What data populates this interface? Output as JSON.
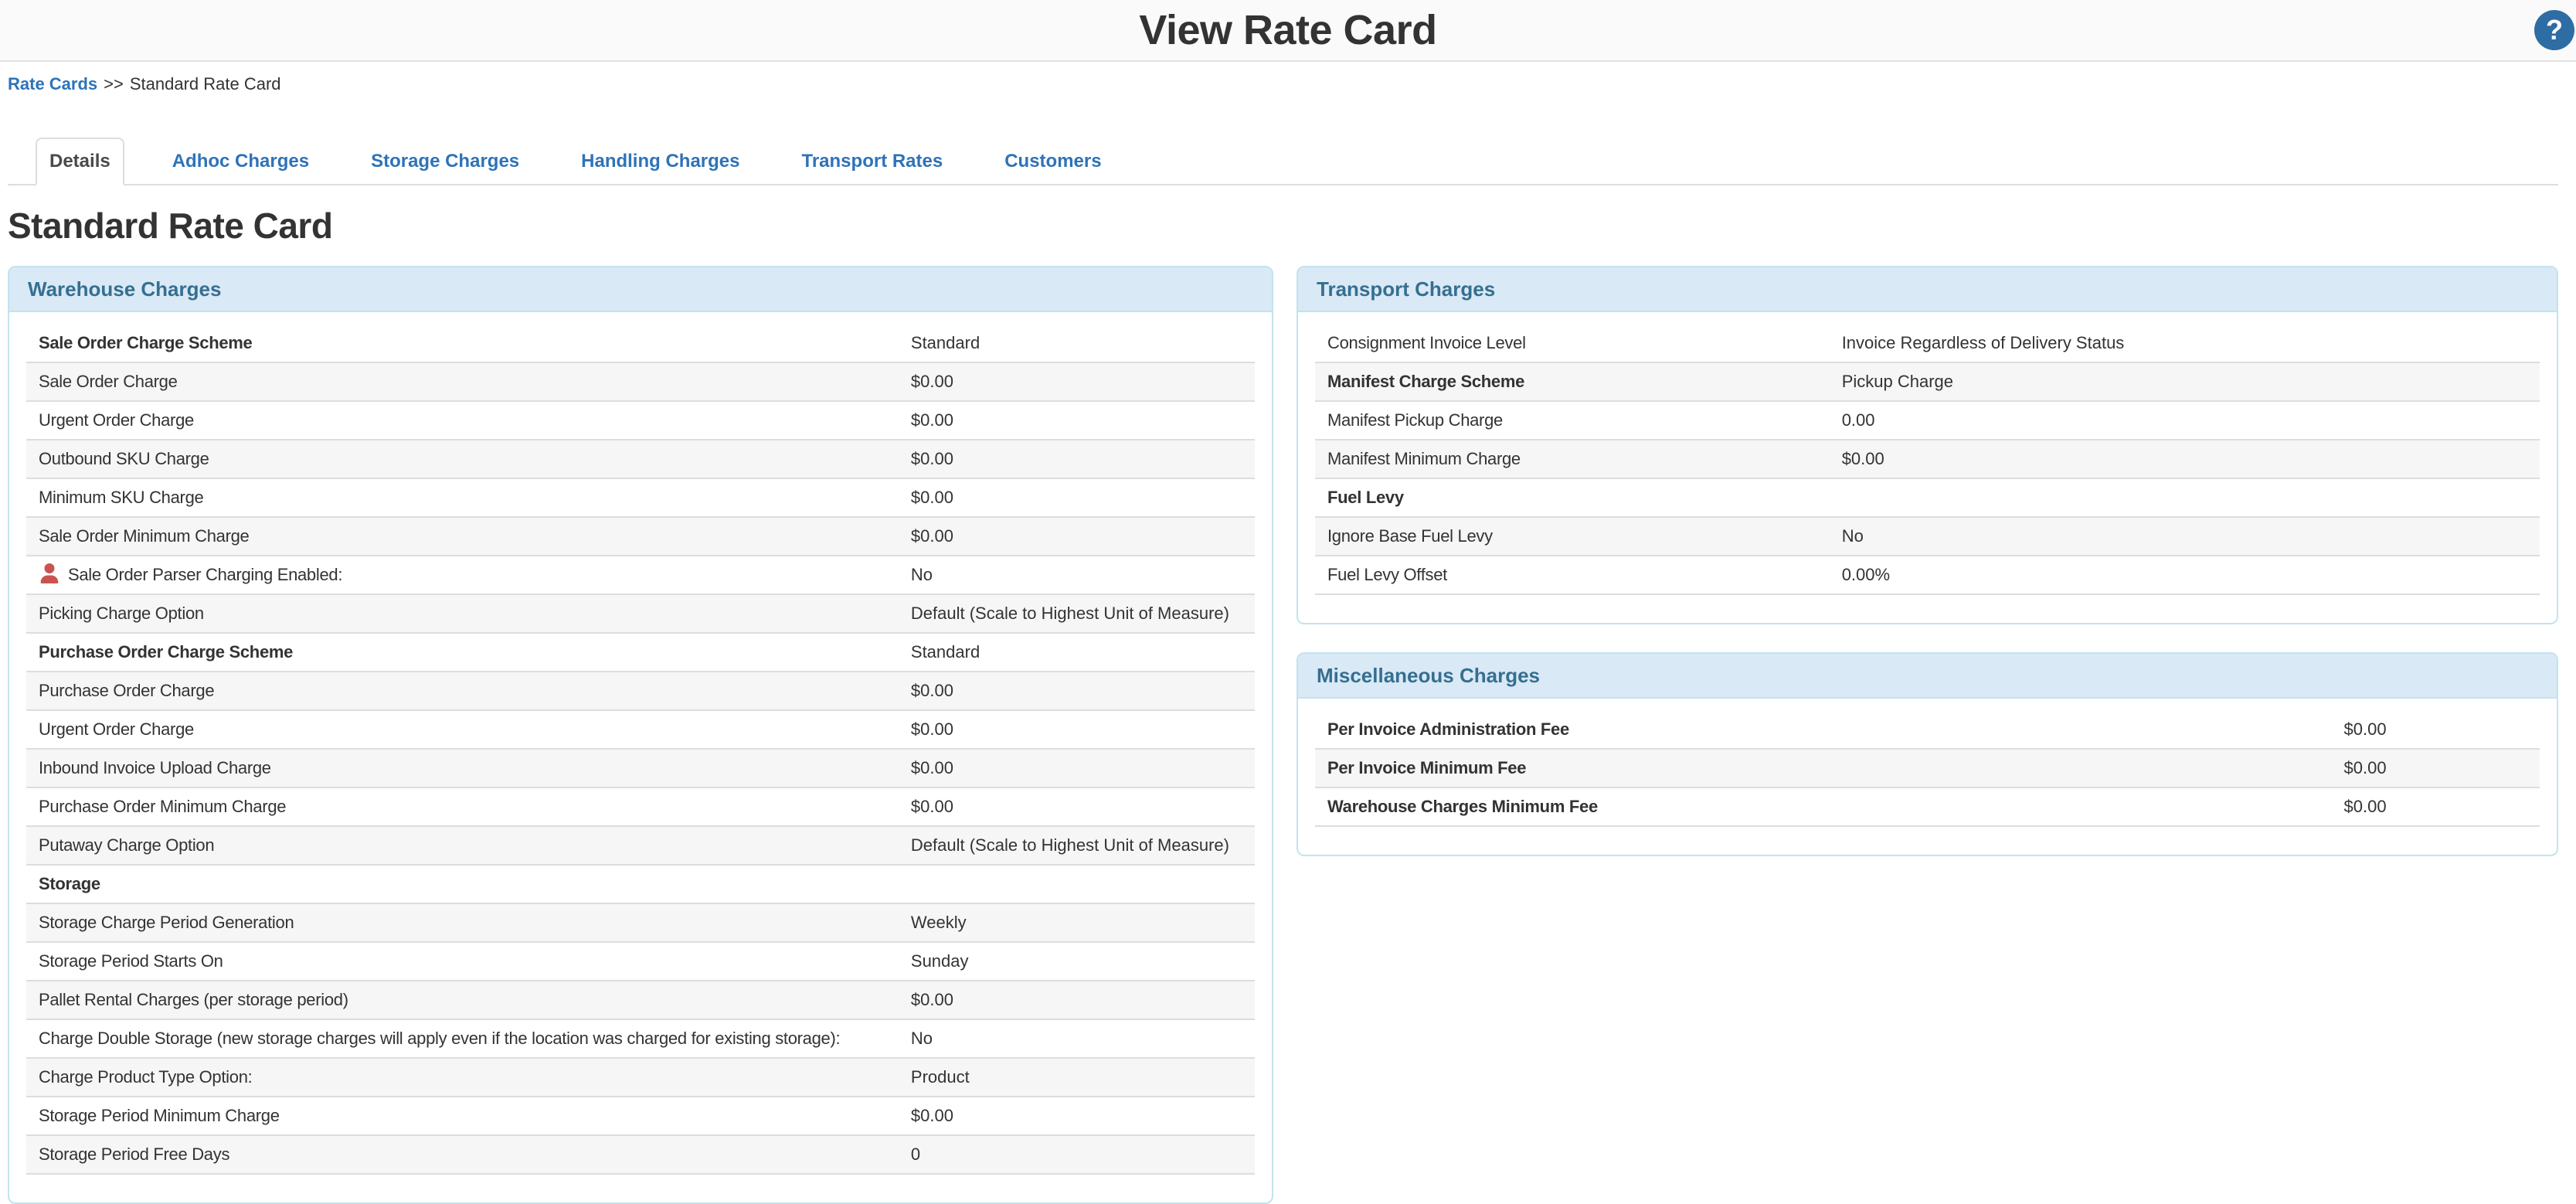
{
  "header": {
    "title": "View Rate Card",
    "help_glyph": "?"
  },
  "breadcrumb": {
    "link": "Rate Cards",
    "separator": ">>",
    "current": "Standard Rate Card"
  },
  "tabs": [
    {
      "label": "Details",
      "active": true
    },
    {
      "label": "Adhoc Charges",
      "active": false
    },
    {
      "label": "Storage Charges",
      "active": false
    },
    {
      "label": "Handling Charges",
      "active": false
    },
    {
      "label": "Transport Rates",
      "active": false
    },
    {
      "label": "Customers",
      "active": false
    }
  ],
  "heading": "Standard Rate Card",
  "panels": {
    "warehouse": {
      "title": "Warehouse Charges",
      "rows": [
        {
          "label": "Sale Order Charge Scheme",
          "value": "Standard",
          "bold": true
        },
        {
          "label": "Sale Order Charge",
          "value": "$0.00"
        },
        {
          "label": "Urgent Order Charge",
          "value": "$0.00"
        },
        {
          "label": "Outbound SKU Charge",
          "value": "$0.00"
        },
        {
          "label": "Minimum SKU Charge",
          "value": "$0.00"
        },
        {
          "label": "Sale Order Minimum Charge",
          "value": "$0.00"
        },
        {
          "label": "Sale Order Parser Charging Enabled:",
          "value": "No",
          "icon": "user-icon"
        },
        {
          "label": "Picking Charge Option",
          "value": "Default (Scale to Highest Unit of Measure)"
        },
        {
          "label": "Purchase Order Charge Scheme",
          "value": "Standard",
          "bold": true
        },
        {
          "label": "Purchase Order Charge",
          "value": "$0.00"
        },
        {
          "label": "Urgent Order Charge",
          "value": "$0.00"
        },
        {
          "label": "Inbound Invoice Upload Charge",
          "value": "$0.00"
        },
        {
          "label": "Purchase Order Minimum Charge",
          "value": "$0.00"
        },
        {
          "label": "Putaway Charge Option",
          "value": "Default (Scale to Highest Unit of Measure)"
        },
        {
          "label": "Storage",
          "value": "",
          "bold": true
        },
        {
          "label": "Storage Charge Period Generation",
          "value": "Weekly"
        },
        {
          "label": "Storage Period Starts On",
          "value": "Sunday"
        },
        {
          "label": "Pallet Rental Charges (per storage period)",
          "value": "$0.00"
        },
        {
          "label": "Charge Double Storage (new storage charges will apply even if the location was charged for existing storage):",
          "value": "No"
        },
        {
          "label": "Charge Product Type Option:",
          "value": "Product"
        },
        {
          "label": "Storage Period Minimum Charge",
          "value": "$0.00"
        },
        {
          "label": "Storage Period Free Days",
          "value": "0"
        }
      ]
    },
    "transport": {
      "title": "Transport Charges",
      "rows": [
        {
          "label": "Consignment Invoice Level",
          "value": "Invoice Regardless of Delivery Status"
        },
        {
          "label": "Manifest Charge Scheme",
          "value": "Pickup Charge",
          "bold": true
        },
        {
          "label": "Manifest Pickup Charge",
          "value": "0.00"
        },
        {
          "label": "Manifest Minimum Charge",
          "value": "$0.00"
        },
        {
          "label": "Fuel Levy",
          "value": "",
          "bold": true
        },
        {
          "label": "Ignore Base Fuel Levy",
          "value": "No"
        },
        {
          "label": "Fuel Levy Offset",
          "value": "0.00%"
        }
      ]
    },
    "miscellaneous": {
      "title": "Miscellaneous Charges",
      "rows": [
        {
          "label": "Per Invoice Administration Fee",
          "value": "$0.00",
          "bold": true
        },
        {
          "label": "Per Invoice Minimum Fee",
          "value": "$0.00",
          "bold": true
        },
        {
          "label": "Warehouse Charges Minimum Fee",
          "value": "$0.00",
          "bold": true
        }
      ]
    }
  },
  "colors": {
    "accent_blue": "#2e73b8",
    "help_icon_bg": "#2e6da4",
    "panel_header_bg": "#d9e9f5",
    "panel_border": "#c2e3ef",
    "panel_title_text": "#356f91",
    "user_icon_red": "#c9544f",
    "stripe": "#f6f6f6"
  }
}
